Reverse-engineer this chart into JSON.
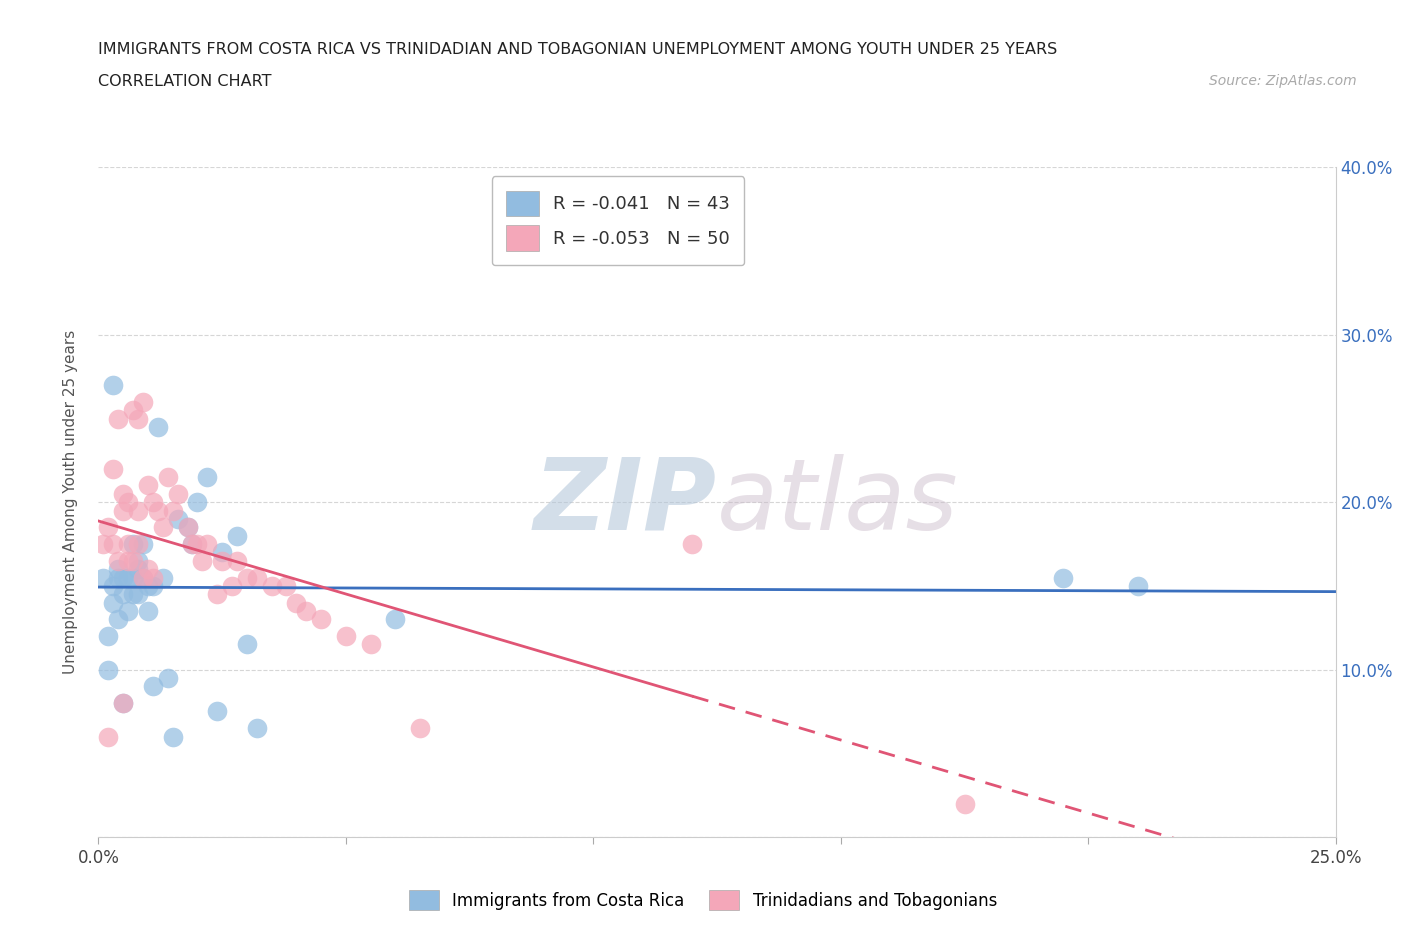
{
  "title_line1": "IMMIGRANTS FROM COSTA RICA VS TRINIDADIAN AND TOBAGONIAN UNEMPLOYMENT AMONG YOUTH UNDER 25 YEARS",
  "title_line2": "CORRELATION CHART",
  "source_text": "Source: ZipAtlas.com",
  "ylabel": "Unemployment Among Youth under 25 years",
  "xlim": [
    0.0,
    0.25
  ],
  "ylim": [
    0.0,
    0.4
  ],
  "xticks": [
    0.0,
    0.05,
    0.1,
    0.15,
    0.2,
    0.25
  ],
  "yticks": [
    0.0,
    0.1,
    0.2,
    0.3,
    0.4
  ],
  "legend_r1": "R = -0.041   N = 43",
  "legend_r2": "R = -0.053   N = 50",
  "color_blue": "#92bce0",
  "color_pink": "#f4a7b9",
  "legend_label1": "Immigrants from Costa Rica",
  "legend_label2": "Trinidadians and Tobagonians",
  "watermark_zip": "ZIP",
  "watermark_atlas": "atlas",
  "costa_rica_x": [
    0.001,
    0.002,
    0.002,
    0.003,
    0.003,
    0.003,
    0.004,
    0.004,
    0.004,
    0.005,
    0.005,
    0.005,
    0.006,
    0.006,
    0.007,
    0.007,
    0.007,
    0.008,
    0.008,
    0.008,
    0.009,
    0.009,
    0.01,
    0.01,
    0.011,
    0.011,
    0.012,
    0.013,
    0.014,
    0.015,
    0.016,
    0.018,
    0.019,
    0.02,
    0.022,
    0.024,
    0.025,
    0.028,
    0.03,
    0.032,
    0.06,
    0.195,
    0.21
  ],
  "costa_rica_y": [
    0.155,
    0.12,
    0.1,
    0.27,
    0.15,
    0.14,
    0.16,
    0.13,
    0.155,
    0.155,
    0.08,
    0.145,
    0.155,
    0.135,
    0.155,
    0.145,
    0.175,
    0.16,
    0.145,
    0.165,
    0.155,
    0.175,
    0.15,
    0.135,
    0.15,
    0.09,
    0.245,
    0.155,
    0.095,
    0.06,
    0.19,
    0.185,
    0.175,
    0.2,
    0.215,
    0.075,
    0.17,
    0.18,
    0.115,
    0.065,
    0.13,
    0.155,
    0.15
  ],
  "trinidad_x": [
    0.001,
    0.002,
    0.002,
    0.003,
    0.003,
    0.004,
    0.004,
    0.005,
    0.005,
    0.005,
    0.006,
    0.006,
    0.006,
    0.007,
    0.007,
    0.008,
    0.008,
    0.008,
    0.009,
    0.009,
    0.01,
    0.01,
    0.011,
    0.011,
    0.012,
    0.013,
    0.014,
    0.015,
    0.016,
    0.018,
    0.019,
    0.02,
    0.021,
    0.022,
    0.024,
    0.025,
    0.027,
    0.028,
    0.03,
    0.032,
    0.035,
    0.038,
    0.04,
    0.042,
    0.045,
    0.05,
    0.055,
    0.065,
    0.12,
    0.175
  ],
  "trinidad_y": [
    0.175,
    0.185,
    0.06,
    0.22,
    0.175,
    0.165,
    0.25,
    0.205,
    0.195,
    0.08,
    0.175,
    0.2,
    0.165,
    0.255,
    0.165,
    0.25,
    0.195,
    0.175,
    0.26,
    0.155,
    0.21,
    0.16,
    0.2,
    0.155,
    0.195,
    0.185,
    0.215,
    0.195,
    0.205,
    0.185,
    0.175,
    0.175,
    0.165,
    0.175,
    0.145,
    0.165,
    0.15,
    0.165,
    0.155,
    0.155,
    0.15,
    0.15,
    0.14,
    0.135,
    0.13,
    0.12,
    0.115,
    0.065,
    0.175,
    0.02
  ]
}
